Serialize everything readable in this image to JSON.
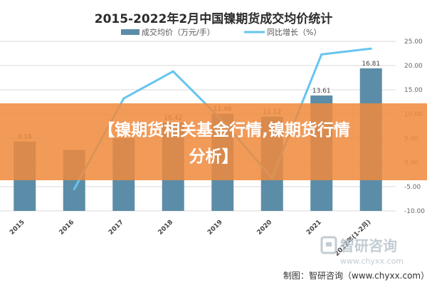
{
  "chart_data": {
    "type": "bar",
    "title": "2015-2022年2月中国镍期货成交均价统计",
    "categories": [
      "2015",
      "2016",
      "2017",
      "2018",
      "2019",
      "2020",
      "2021",
      "2022年(1-2月)"
    ],
    "series": [
      {
        "name": "成交均价（万元/手）",
        "type": "bar",
        "axis": "left",
        "values": [
          8.18,
          7.2,
          8.6,
          10.42,
          11.46,
          11.12,
          13.61,
          16.81
        ],
        "labels": [
          "8.18",
          null,
          null,
          "10.42",
          "11.46",
          "11.12",
          "13.61",
          "16.81"
        ],
        "color": "#5b8da8"
      },
      {
        "name": "同比增长（%）",
        "type": "line",
        "axis": "right",
        "values": [
          null,
          -5.5,
          13.2,
          18.8,
          8.6,
          -3.2,
          22.3,
          23.5
        ],
        "color": "#66c5ee"
      }
    ],
    "left_axis": {
      "ylim": [
        0,
        20
      ]
    },
    "right_axis": {
      "ylim": [
        -10,
        25
      ],
      "ticks": [
        "-10.00",
        "-5.00",
        "0.00",
        "5.00",
        "10.00",
        "15.00",
        "20.00",
        "25.00"
      ]
    },
    "grid": true,
    "legend": "top-center"
  },
  "banner": {
    "line1": "【镍期货相关基金行情,镍期货行情",
    "line2": "分析】",
    "color": "#f08a3c"
  },
  "credit": "制图：智研咨询（www.chyxx.com）",
  "watermark": {
    "name": "智研咨询",
    "url": "www.chyxx.com"
  }
}
